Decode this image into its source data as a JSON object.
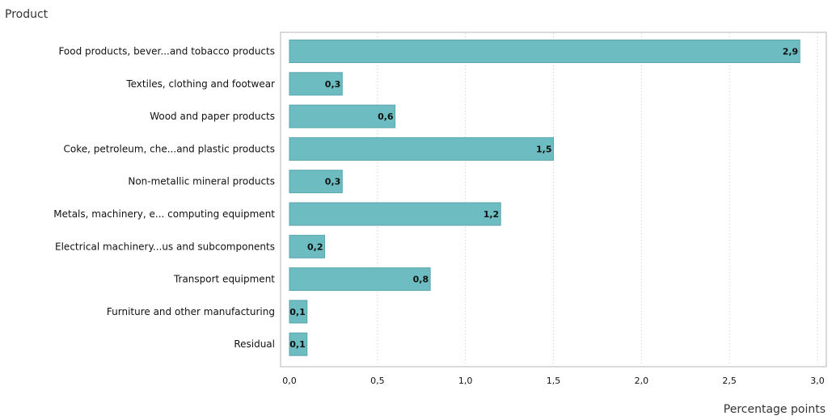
{
  "chart_data": {
    "type": "bar",
    "orientation": "horizontal",
    "title": "",
    "ylabel": "Product",
    "xlabel": "Percentage points",
    "categories": [
      "Food products, bever...and tobacco products",
      "Textiles, clothing and footwear",
      "Wood and paper products",
      "Coke, petroleum, che...and plastic products",
      "Non-metallic mineral products",
      "Metals, machinery, e... computing equipment",
      "Electrical machinery...us and subcomponents",
      "Transport equipment",
      "Furniture and other manufacturing",
      "Residual"
    ],
    "values": [
      2.9,
      0.3,
      0.6,
      1.5,
      0.3,
      1.2,
      0.2,
      0.8,
      0.1,
      0.1
    ],
    "value_labels": [
      "2,9",
      "0,3",
      "0,6",
      "1,5",
      "0,3",
      "1,2",
      "0,2",
      "0,8",
      "0,1",
      "0,1"
    ],
    "xlim": [
      0,
      3.0
    ],
    "xticks": [
      0,
      0.5,
      1.0,
      1.5,
      2.0,
      2.5,
      3.0
    ],
    "xtick_labels": [
      "0,0",
      "0,5",
      "1,0",
      "1,5",
      "2,0",
      "2,5",
      "3,0"
    ],
    "grid": "vertical dotted",
    "bar_color": "#6cbcc1",
    "legend": "none"
  }
}
